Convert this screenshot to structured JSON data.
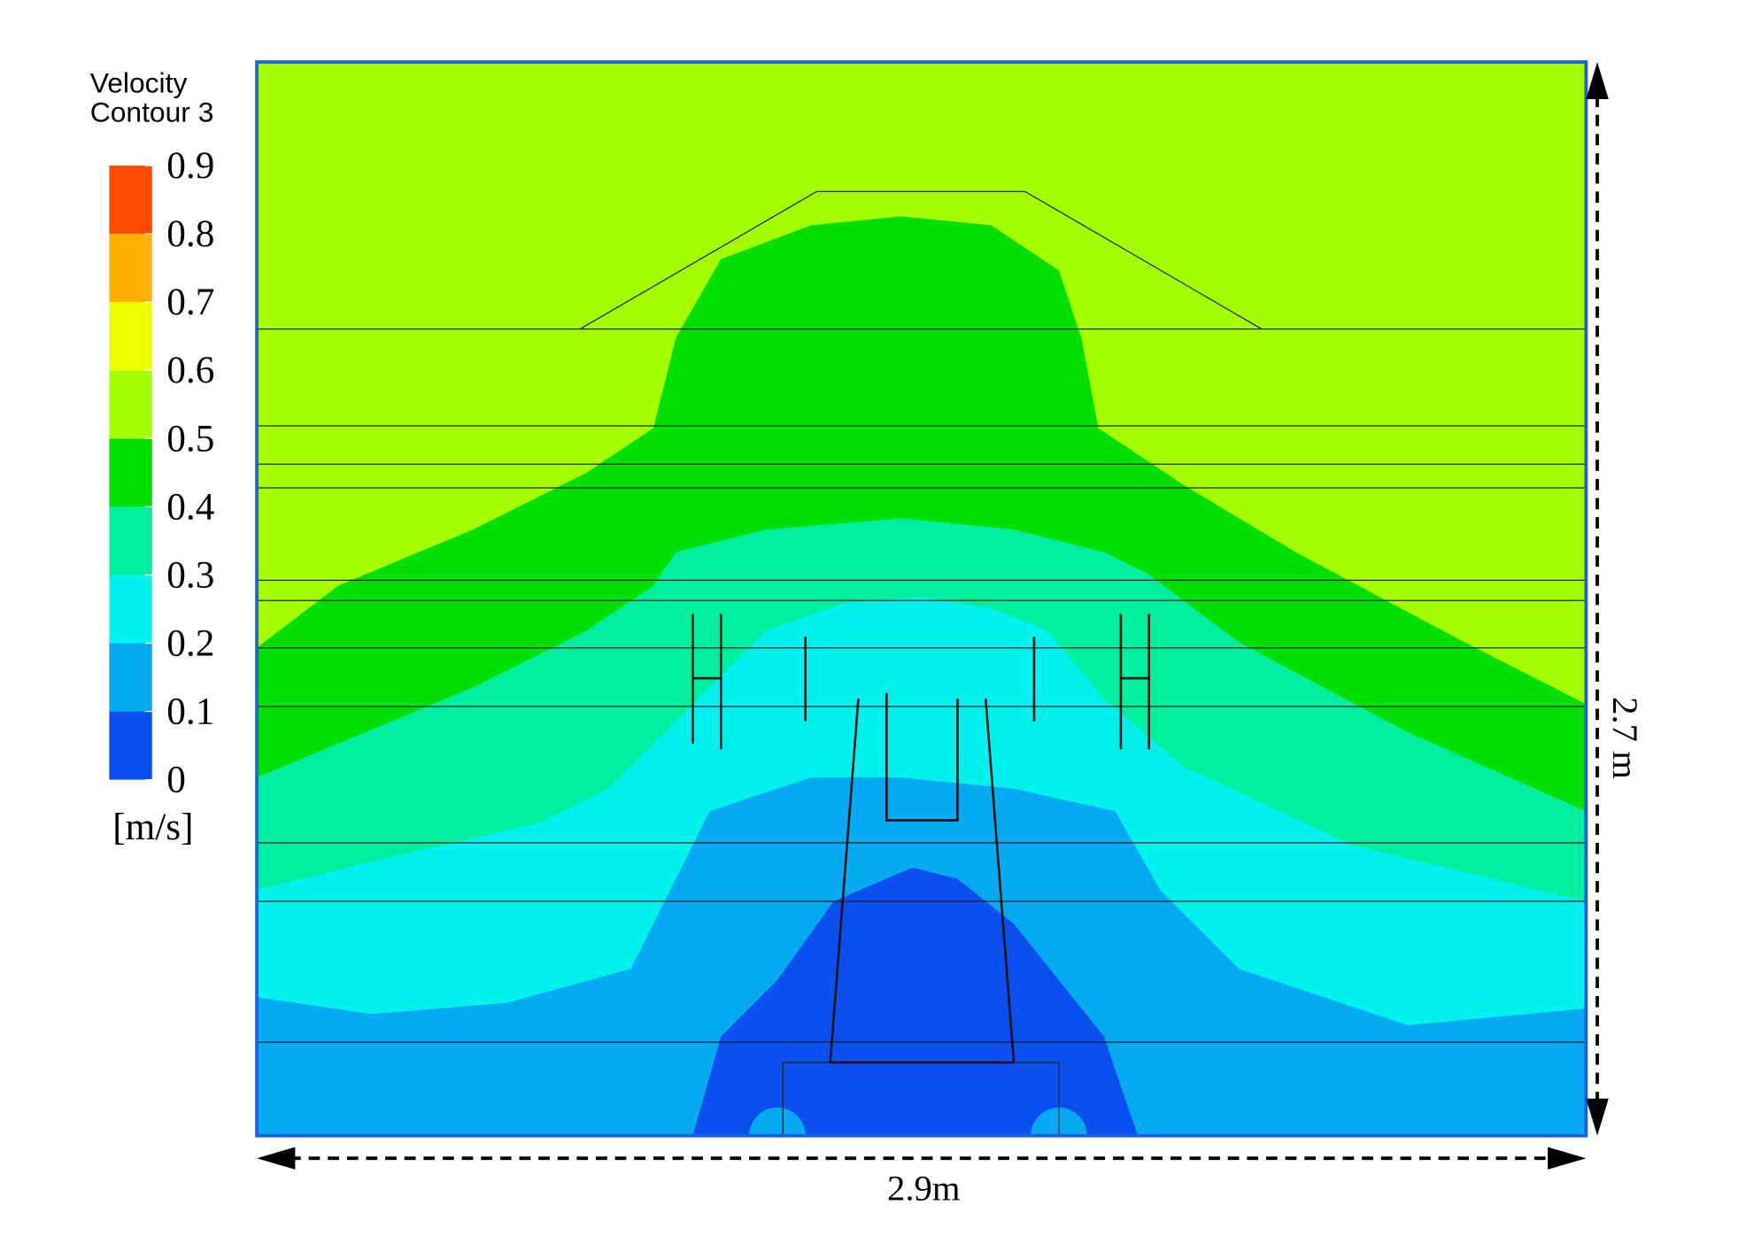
{
  "legend": {
    "title": [
      "Velocity",
      "Contour 3"
    ],
    "lim": [
      0,
      0.9
    ],
    "ticks": [
      0,
      0.1,
      0.2,
      0.3,
      0.4,
      0.5,
      0.6,
      0.7,
      0.8,
      0.9
    ],
    "colors": [
      "#0a4ff0",
      "#05aaf2",
      "#00f2ee",
      "#00eea0",
      "#00e000",
      "#a4ff00",
      "#eeff00",
      "#ffb000",
      "#ff4a00"
    ],
    "unit": "[m/s]"
  },
  "dimensions": {
    "width": "2.9m",
    "height": "2.7 m"
  }
}
